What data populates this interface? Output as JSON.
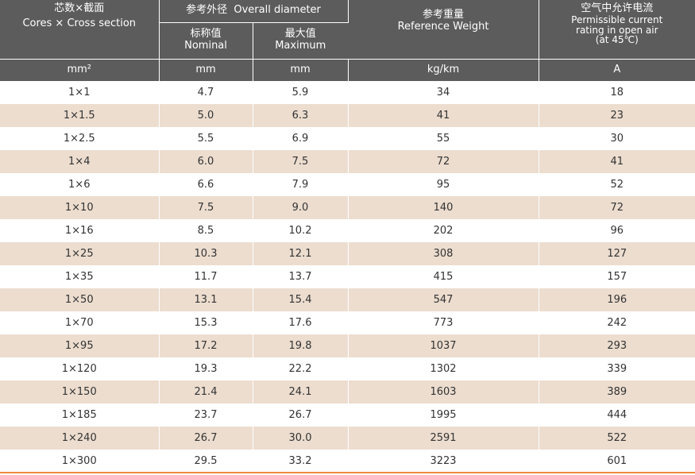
{
  "header": {
    "cores_zh": "芯数×截面",
    "cores_en": "Cores × Cross section",
    "od_group": "参考外径  Overall diameter",
    "nominal_zh": "标称值",
    "nominal_en": "Nominal",
    "maximum_zh": "最大值",
    "maximum_en": "Maximum",
    "weight_zh": "参考重量",
    "weight_en": "Reference Weight",
    "current_zh": "空气中允许电流",
    "current_en1": "Permissible current",
    "current_en2": "rating in open air",
    "current_en3": "(at 45℃)"
  },
  "units": {
    "cores": "mm²",
    "nominal": "mm",
    "maximum": "mm",
    "weight": "kg/km",
    "current": "A"
  },
  "rows": [
    {
      "section": "1×1",
      "nominal": "4.7",
      "maximum": "5.9",
      "weight": "34",
      "current": "18"
    },
    {
      "section": "1×1.5",
      "nominal": "5.0",
      "maximum": "6.3",
      "weight": "41",
      "current": "23"
    },
    {
      "section": "1×2.5",
      "nominal": "5.5",
      "maximum": "6.9",
      "weight": "55",
      "current": "30"
    },
    {
      "section": "1×4",
      "nominal": "6.0",
      "maximum": "7.5",
      "weight": "72",
      "current": "41"
    },
    {
      "section": "1×6",
      "nominal": "6.6",
      "maximum": "7.9",
      "weight": "95",
      "current": "52"
    },
    {
      "section": "1×10",
      "nominal": "7.5",
      "maximum": "9.0",
      "weight": "140",
      "current": "72"
    },
    {
      "section": "1×16",
      "nominal": "8.5",
      "maximum": "10.2",
      "weight": "202",
      "current": "96"
    },
    {
      "section": "1×25",
      "nominal": "10.3",
      "maximum": "12.1",
      "weight": "308",
      "current": "127"
    },
    {
      "section": "1×35",
      "nominal": "11.7",
      "maximum": "13.7",
      "weight": "415",
      "current": "157"
    },
    {
      "section": "1×50",
      "nominal": "13.1",
      "maximum": "15.4",
      "weight": "547",
      "current": "196"
    },
    {
      "section": "1×70",
      "nominal": "15.3",
      "maximum": "17.6",
      "weight": "773",
      "current": "242"
    },
    {
      "section": "1×95",
      "nominal": "17.2",
      "maximum": "19.8",
      "weight": "1037",
      "current": "293"
    },
    {
      "section": "1×120",
      "nominal": "19.3",
      "maximum": "22.2",
      "weight": "1302",
      "current": "339"
    },
    {
      "section": "1×150",
      "nominal": "21.4",
      "maximum": "24.1",
      "weight": "1603",
      "current": "389"
    },
    {
      "section": "1×185",
      "nominal": "23.7",
      "maximum": "26.7",
      "weight": "1995",
      "current": "444"
    },
    {
      "section": "1×240",
      "nominal": "26.7",
      "maximum": "30.0",
      "weight": "2591",
      "current": "522"
    },
    {
      "section": "1×300",
      "nominal": "29.5",
      "maximum": "33.2",
      "weight": "3223",
      "current": "601"
    }
  ]
}
